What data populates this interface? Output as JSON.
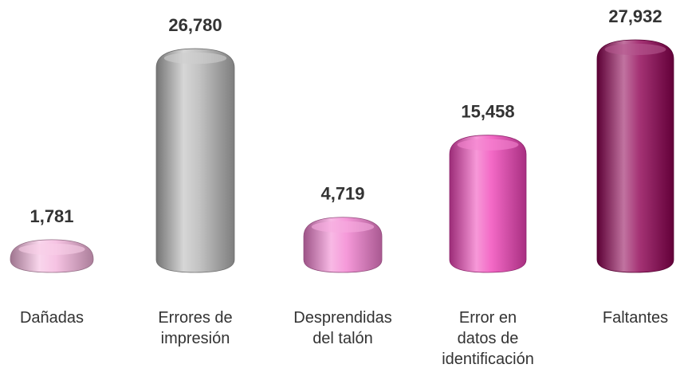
{
  "chart_data": {
    "type": "bar3d",
    "categories": [
      "Dañadas",
      "Errores de impresión",
      "Desprendidas del talón",
      "Error en datos de identificación",
      "Faltantes"
    ],
    "values": [
      1781,
      26780,
      4719,
      15458,
      27932
    ],
    "value_labels": [
      "1,781",
      "26,780",
      "4,719",
      "15,458",
      "27,932"
    ],
    "colors": [
      "#f4b4dc",
      "#b4b4b4",
      "#f27fcf",
      "#f043b8",
      "#8e0052"
    ]
  }
}
